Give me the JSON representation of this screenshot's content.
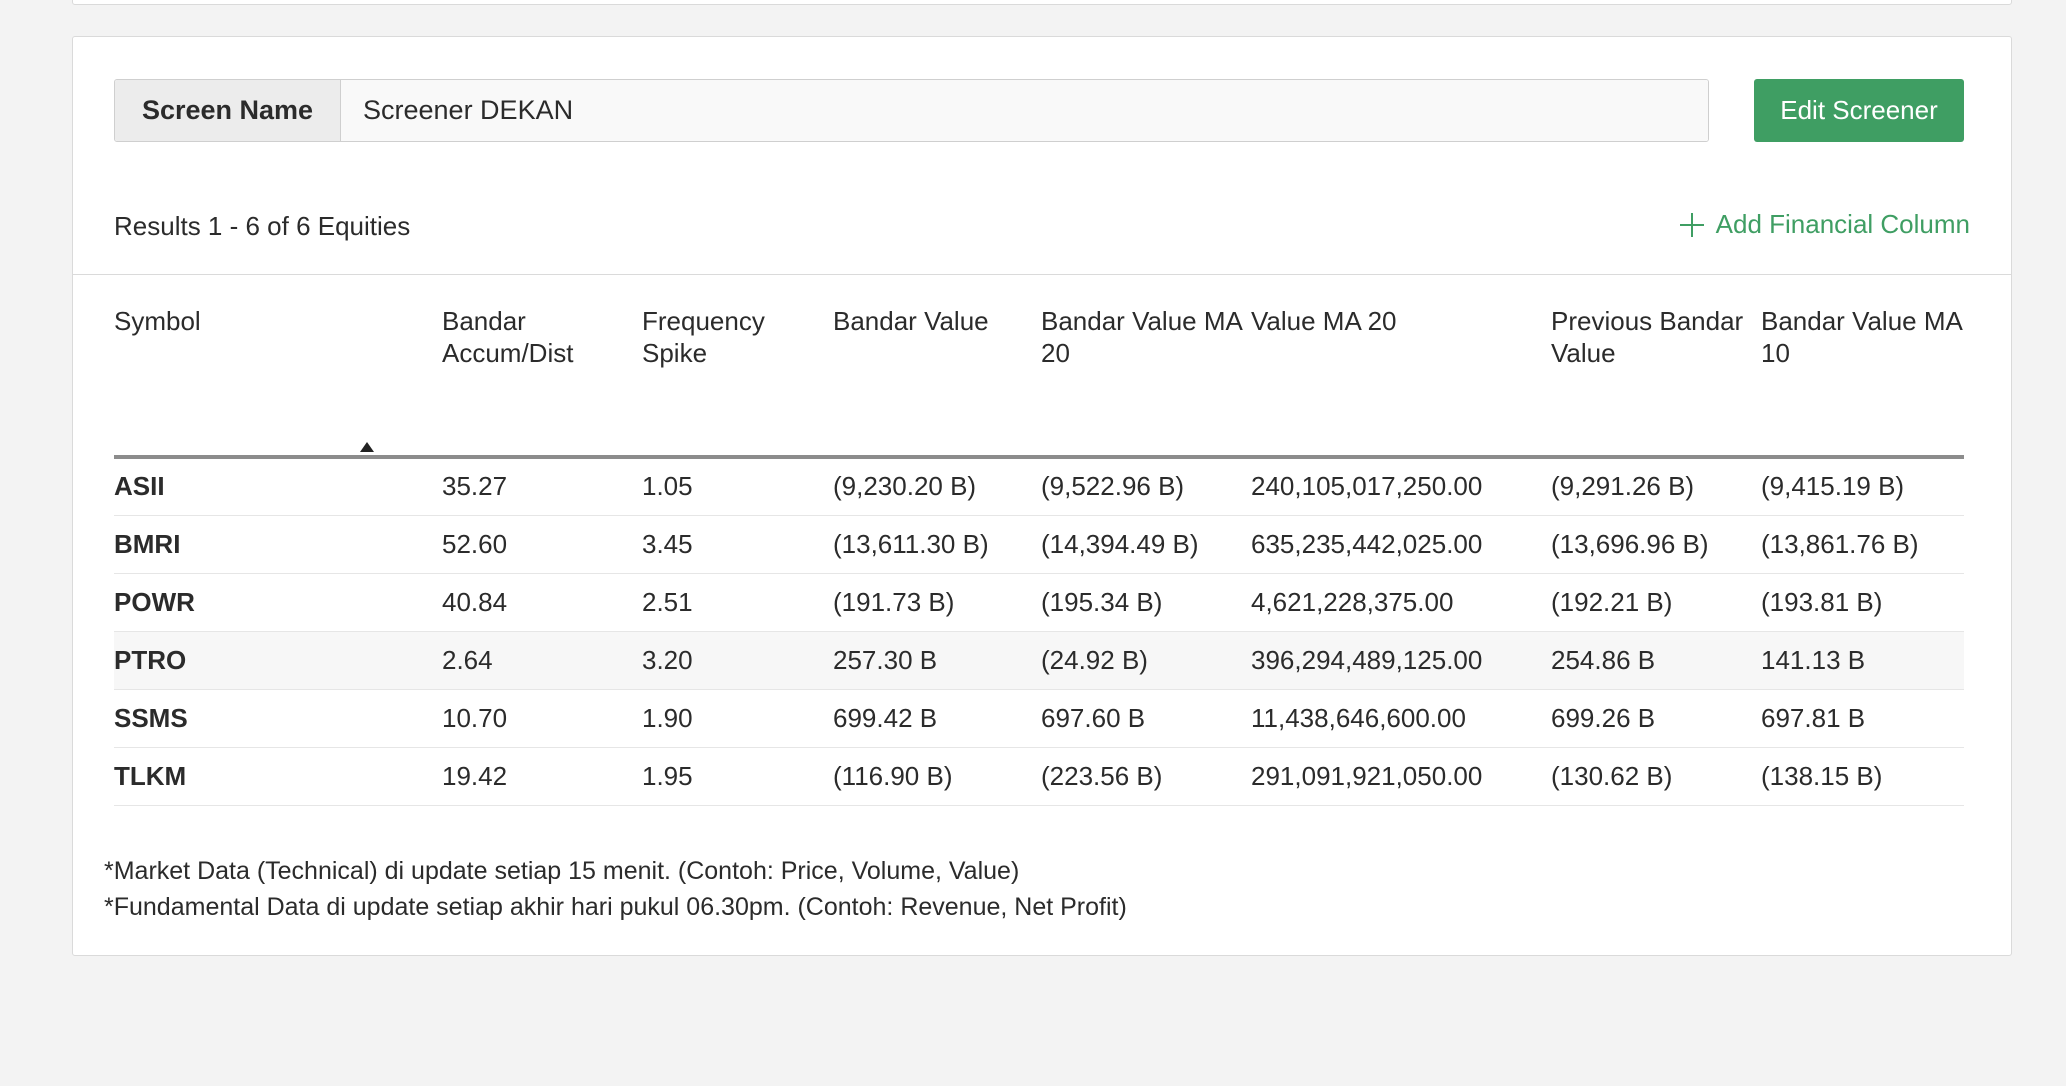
{
  "screen": {
    "label": "Screen Name",
    "name_value": "Screener DEKAN",
    "edit_button": "Edit Screener"
  },
  "results": {
    "summary": "Results 1 - 6 of 6 Equities",
    "add_column": "Add Financial Column"
  },
  "table": {
    "headers": [
      "Symbol",
      "",
      "Bandar Accum/Dist",
      "Frequency Spike",
      "Bandar Value",
      "Bandar Value MA 20",
      "Value MA 20",
      "Previous Bandar Value",
      "Bandar Value MA 10"
    ],
    "rows": [
      {
        "symbol": "ASII",
        "accum": "35.27",
        "freq": "1.05",
        "bandar_value": "(9,230.20 B)",
        "bv_ma20": "(9,522.96 B)",
        "value_ma20": "240,105,017,250.00",
        "prev_bv": "(9,291.26 B)",
        "bv_ma10": "(9,415.19 B)"
      },
      {
        "symbol": "BMRI",
        "accum": "52.60",
        "freq": "3.45",
        "bandar_value": "(13,611.30 B)",
        "bv_ma20": "(14,394.49 B)",
        "value_ma20": "635,235,442,025.00",
        "prev_bv": "(13,696.96 B)",
        "bv_ma10": "(13,861.76 B)"
      },
      {
        "symbol": "POWR",
        "accum": "40.84",
        "freq": "2.51",
        "bandar_value": "(191.73 B)",
        "bv_ma20": "(195.34 B)",
        "value_ma20": "4,621,228,375.00",
        "prev_bv": "(192.21 B)",
        "bv_ma10": "(193.81 B)"
      },
      {
        "symbol": "PTRO",
        "accum": "2.64",
        "freq": "3.20",
        "bandar_value": "257.30 B",
        "bv_ma20": "(24.92 B)",
        "value_ma20": "396,294,489,125.00",
        "prev_bv": "254.86 B",
        "bv_ma10": "141.13 B"
      },
      {
        "symbol": "SSMS",
        "accum": "10.70",
        "freq": "1.90",
        "bandar_value": "699.42 B",
        "bv_ma20": "697.60 B",
        "value_ma20": "11,438,646,600.00",
        "prev_bv": "699.26 B",
        "bv_ma10": "697.81 B"
      },
      {
        "symbol": "TLKM",
        "accum": "19.42",
        "freq": "1.95",
        "bandar_value": "(116.90 B)",
        "bv_ma20": "(223.56 B)",
        "value_ma20": "291,091,921,050.00",
        "prev_bv": "(130.62 B)",
        "bv_ma10": "(138.15 B)"
      }
    ]
  },
  "notes": [
    "*Market Data (Technical) di update setiap 15 menit. (Contoh: Price, Volume, Value)",
    "*Fundamental Data di update setiap akhir hari pukul 06.30pm. (Contoh: Revenue, Net Profit)"
  ]
}
